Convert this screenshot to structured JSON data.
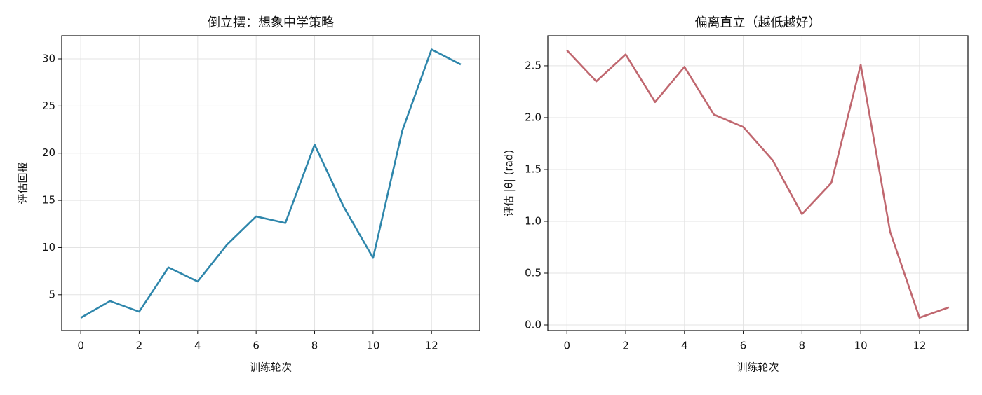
{
  "chart_data": [
    {
      "type": "line",
      "title": "倒立摆：想象中学策略",
      "x_label": "训练轮次",
      "y_label": "评估回报",
      "x": [
        0,
        1,
        2,
        3,
        4,
        5,
        6,
        7,
        8,
        9,
        10,
        11,
        12,
        13
      ],
      "series": [
        {
          "color": "#2e86ab",
          "values": [
            2.55,
            4.33,
            3.2,
            7.9,
            6.4,
            10.3,
            13.3,
            12.6,
            20.9,
            14.3,
            8.9,
            22.4,
            31.0,
            29.4
          ]
        }
      ],
      "xlim": [
        -0.65,
        13.65
      ],
      "xticks": [
        0,
        2,
        4,
        6,
        8,
        10,
        12
      ],
      "ylim": [
        1.2,
        32.45
      ],
      "yticks": [
        5,
        10,
        15,
        20,
        25,
        30
      ],
      "grid": true
    },
    {
      "type": "line",
      "title": "偏离直立（越低越好）",
      "x_label": "训练轮次",
      "y_label": "评估 |θ| (rad)",
      "x": [
        0,
        1,
        2,
        3,
        4,
        5,
        6,
        7,
        8,
        9,
        10,
        11,
        12,
        13
      ],
      "series": [
        {
          "color": "#c0676f",
          "values": [
            2.65,
            2.35,
            2.61,
            2.15,
            2.49,
            2.03,
            1.91,
            1.59,
            1.07,
            1.37,
            2.51,
            0.9,
            0.07,
            0.17
          ]
        }
      ],
      "xlim": [
        -0.65,
        13.65
      ],
      "xticks": [
        0,
        2,
        4,
        6,
        8,
        10,
        12
      ],
      "ylim": [
        -0.054,
        2.79
      ],
      "yticks": [
        {
          "value": 0,
          "label": "0.0"
        },
        0.5,
        {
          "value": 1,
          "label": "1.0"
        },
        1.5,
        {
          "value": 2,
          "label": "2.0"
        },
        2.5
      ],
      "grid": true
    }
  ]
}
